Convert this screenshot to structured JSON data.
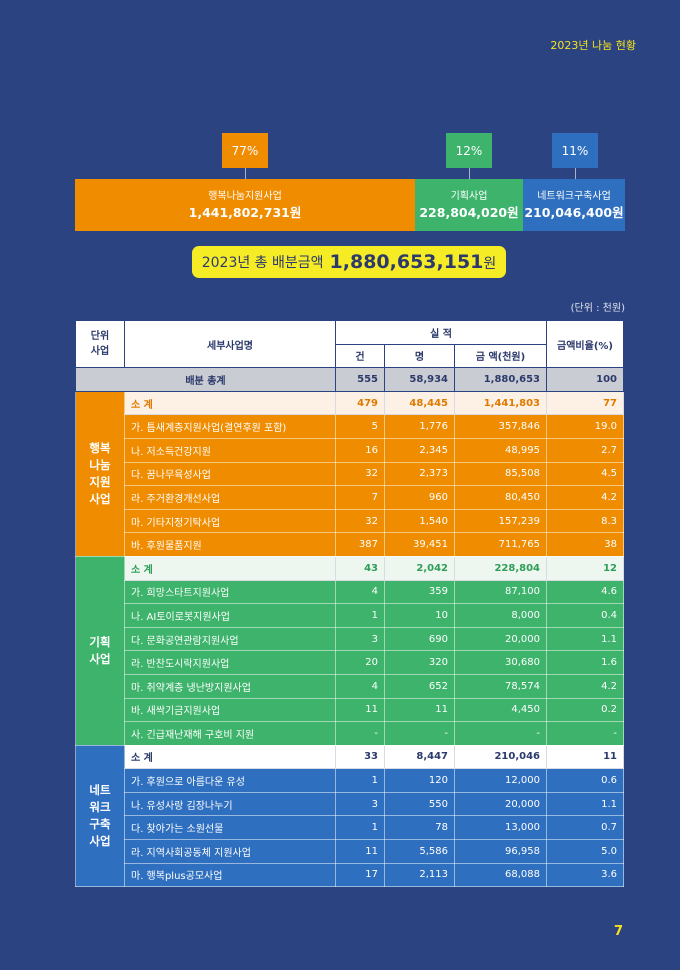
{
  "header": {
    "title": "2023년 나눔 현황"
  },
  "colors": {
    "orange": "#ef8c00",
    "green": "#3db36b",
    "blue": "#2f6fbf",
    "navy": "#2c4381",
    "yellow": "#f6ec25"
  },
  "summary": {
    "segments": [
      {
        "name": "행복나눔지원사업",
        "amount": "1,441,802,731원",
        "percent": "77%",
        "share": 77
      },
      {
        "name": "기획사업",
        "amount": "228,804,020원",
        "percent": "12%",
        "share": 12
      },
      {
        "name": "네트워크구축사업",
        "amount": "210,046,400원",
        "percent": "11%",
        "share": 11
      }
    ],
    "total_label": "2023년 총 배분금액",
    "total_value": "1,880,653,151",
    "total_unit": "원"
  },
  "unit_note": "(단위 : 천원)",
  "table": {
    "headers": {
      "unit": "단위\n사업",
      "detail": "세부사업명",
      "perf": "실 적",
      "cases": "건",
      "people": "명",
      "amount": "금 액(천원)",
      "ratio": "금액비율(%)"
    },
    "total": {
      "label": "배분 총계",
      "cases": "555",
      "people": "58,934",
      "amount": "1,880,653",
      "ratio": "100"
    },
    "groups": [
      {
        "name": "행복\n나눔\n지원\n사업",
        "color": "orange",
        "subtotal": {
          "label": "소  계",
          "cases": "479",
          "people": "48,445",
          "amount": "1,441,803",
          "ratio": "77"
        },
        "rows": [
          [
            "가. 틈새계층지원사업(결연후원 포함)",
            "5",
            "1,776",
            "357,846",
            "19.0"
          ],
          [
            "나. 저소득건강지원",
            "16",
            "2,345",
            "48,995",
            "2.7"
          ],
          [
            "다. 꿈나무육성사업",
            "32",
            "2,373",
            "85,508",
            "4.5"
          ],
          [
            "라. 주거환경개선사업",
            "7",
            "960",
            "80,450",
            "4.2"
          ],
          [
            "마. 기타지정기탁사업",
            "32",
            "1,540",
            "157,239",
            "8.3"
          ],
          [
            "바. 후원물품지원",
            "387",
            "39,451",
            "711,765",
            "38"
          ]
        ]
      },
      {
        "name": "기획\n사업",
        "color": "green",
        "subtotal": {
          "label": "소  계",
          "cases": "43",
          "people": "2,042",
          "amount": "228,804",
          "ratio": "12"
        },
        "rows": [
          [
            "가. 희망스타트지원사업",
            "4",
            "359",
            "87,100",
            "4.6"
          ],
          [
            "나. AI토이로봇지원사업",
            "1",
            "10",
            "8,000",
            "0.4"
          ],
          [
            "다. 문화공연관람지원사업",
            "3",
            "690",
            "20,000",
            "1.1"
          ],
          [
            "라. 반찬도시락지원사업",
            "20",
            "320",
            "30,680",
            "1.6"
          ],
          [
            "마. 취약계층 냉난방지원사업",
            "4",
            "652",
            "78,574",
            "4.2"
          ],
          [
            "바. 새싹기금지원사업",
            "11",
            "11",
            "4,450",
            "0.2"
          ],
          [
            "사. 긴급재난재해 구호비 지원",
            "-",
            "-",
            "-",
            "-"
          ]
        ]
      },
      {
        "name": "네트\n워크\n구축\n사업",
        "color": "blue",
        "subtotal": {
          "label": "소  계",
          "cases": "33",
          "people": "8,447",
          "amount": "210,046",
          "ratio": "11"
        },
        "rows": [
          [
            "가. 후원으로 아름다운 유성",
            "1",
            "120",
            "12,000",
            "0.6"
          ],
          [
            "나. 유성사랑 김장나누기",
            "3",
            "550",
            "20,000",
            "1.1"
          ],
          [
            "다. 찾아가는 소원선물",
            "1",
            "78",
            "13,000",
            "0.7"
          ],
          [
            "라. 지역사회공동체 지원사업",
            "11",
            "5,586",
            "96,958",
            "5.0"
          ],
          [
            "마. 행복plus공모사업",
            "17",
            "2,113",
            "68,088",
            "3.6"
          ]
        ]
      }
    ]
  },
  "page_number": "7"
}
